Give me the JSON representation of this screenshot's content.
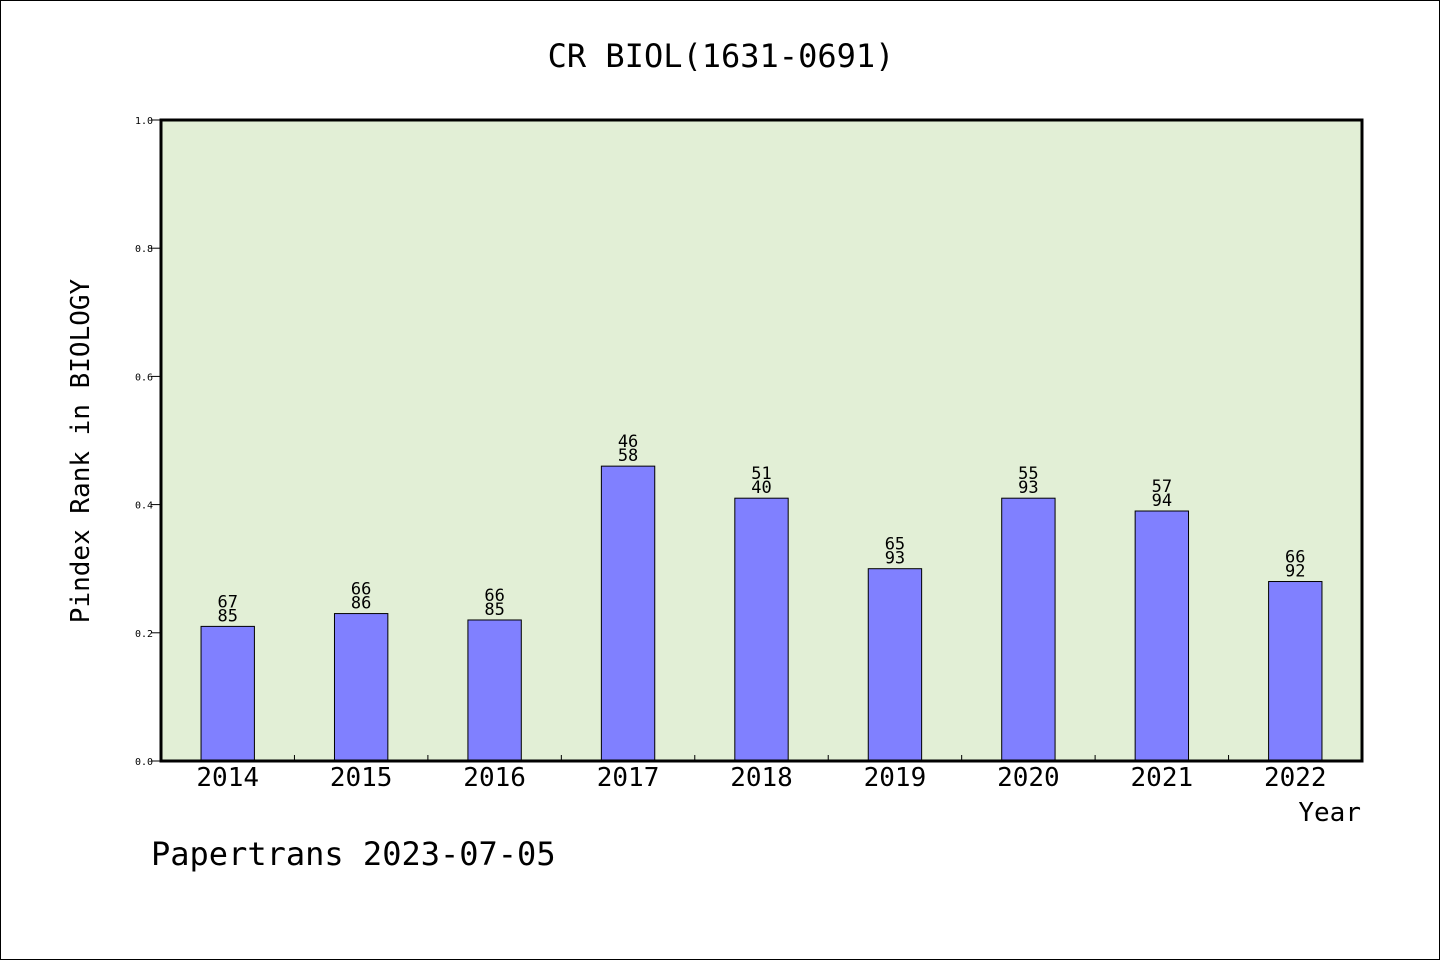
{
  "chart_data": {
    "type": "bar",
    "title": "CR BIOL(1631-0691)",
    "xlabel": "Year",
    "ylabel": "Pindex Rank in BIOLOGY",
    "ylim": [
      0,
      1.0
    ],
    "yticks": [
      "0.0",
      "0.2",
      "0.4",
      "0.6",
      "0.8",
      "1.0"
    ],
    "categories": [
      "2014",
      "2015",
      "2016",
      "2017",
      "2018",
      "2019",
      "2020",
      "2021",
      "2022"
    ],
    "values": [
      0.21,
      0.23,
      0.22,
      0.46,
      0.41,
      0.3,
      0.41,
      0.39,
      0.28
    ],
    "bar_labels": [
      [
        "67",
        "85"
      ],
      [
        "66",
        "86"
      ],
      [
        "66",
        "85"
      ],
      [
        "46",
        "58"
      ],
      [
        "51",
        "40"
      ],
      [
        "65",
        "93"
      ],
      [
        "55",
        "93"
      ],
      [
        "57",
        "94"
      ],
      [
        "66",
        "92"
      ]
    ],
    "grid": false,
    "colors": {
      "bar": "#8080ff",
      "plot_background": "#e2efd6",
      "axis": "#000000"
    }
  },
  "footer": {
    "text": "Papertrans 2023-07-05"
  }
}
